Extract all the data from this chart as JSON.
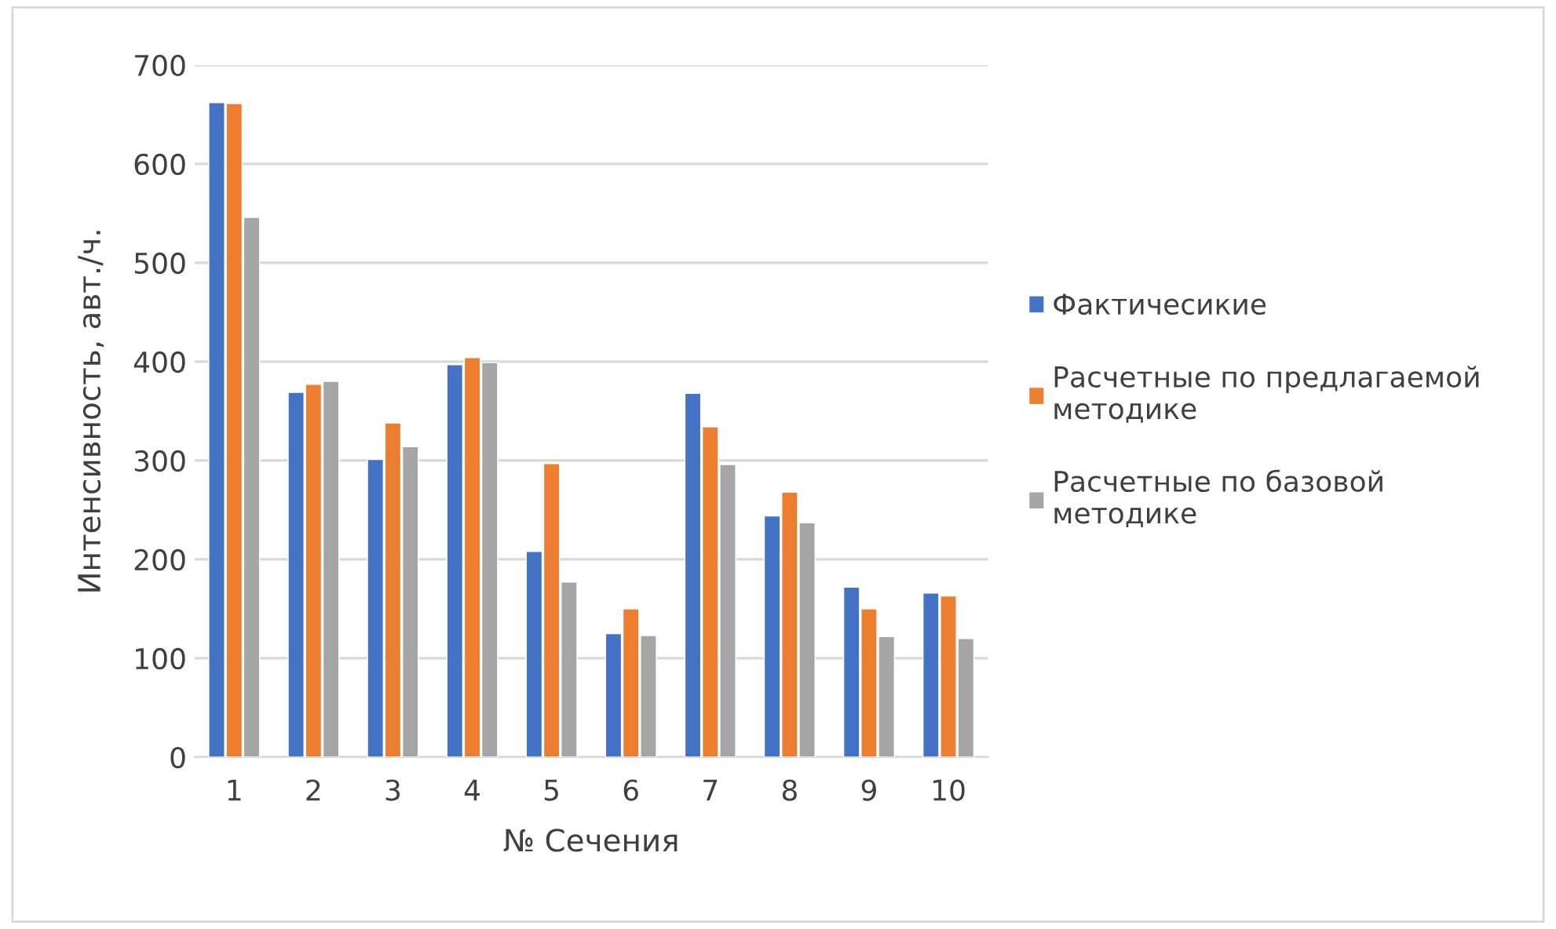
{
  "chart_data": {
    "type": "bar",
    "xlabel": "№ Сечения",
    "ylabel": "Интенсивность, авт./ч.",
    "categories": [
      "1",
      "2",
      "3",
      "4",
      "5",
      "6",
      "7",
      "8",
      "9",
      "10"
    ],
    "series": [
      {
        "name": "Фактичесикие",
        "color": "#4472c4",
        "values": [
          662,
          369,
          301,
          397,
          208,
          125,
          368,
          244,
          172,
          166
        ]
      },
      {
        "name": "Расчетные по предлагаемой методике",
        "color": "#ed7d31",
        "values": [
          661,
          377,
          338,
          404,
          297,
          150,
          334,
          268,
          150,
          163
        ]
      },
      {
        "name": "Расчетные по базовой методике",
        "color": "#a5a5a5",
        "values": [
          546,
          380,
          314,
          399,
          177,
          123,
          296,
          237,
          122,
          120
        ]
      }
    ],
    "ylim": [
      0,
      700
    ],
    "yticks": [
      0,
      100,
      200,
      300,
      400,
      500,
      600,
      700
    ],
    "grid": "y",
    "legend": "right"
  }
}
